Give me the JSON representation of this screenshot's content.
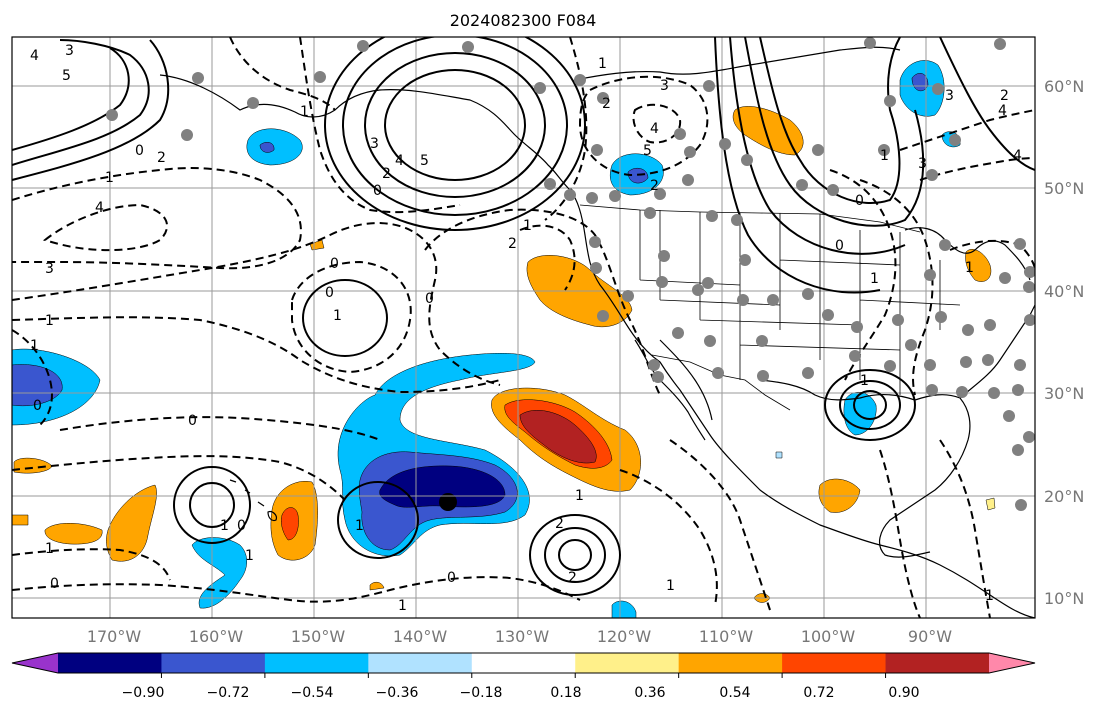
{
  "title": "2024082300 F084",
  "lon_labels": [
    "170°W",
    "160°W",
    "150°W",
    "140°W",
    "130°W",
    "120°W",
    "110°W",
    "100°W",
    "90°W"
  ],
  "lat_labels": [
    "60°N",
    "50°N",
    "40°N",
    "30°N",
    "20°N",
    "10°N"
  ],
  "colorbar": {
    "colors": [
      "#9933cc",
      "#000080",
      "#3a56cf",
      "#00bfff",
      "#b0e2ff",
      "#ffffff",
      "#fff08a",
      "#ffa500",
      "#ff4500",
      "#b22222",
      "#ff88aa"
    ],
    "tick_labels": [
      "−0.90",
      "−0.72",
      "−0.54",
      "−0.36",
      "−0.18",
      "0.18",
      "0.36",
      "0.54",
      "0.72",
      "0.90"
    ]
  },
  "shading_colors": {
    "blue_light": "#00bfff",
    "blue_mid": "#3a56cf",
    "blue_dark": "#000080",
    "orange": "#ffa500",
    "red_orange": "#ff4500",
    "red_dark": "#b22222",
    "pale_blue": "#b0e2ff",
    "yellow": "#fff08a"
  },
  "contour_labels": [
    "4",
    "3",
    "5",
    "0",
    "2",
    "1",
    "4",
    "3",
    "5",
    "4",
    "3",
    "2",
    "0",
    "1",
    "3",
    "4",
    "5",
    "2",
    "1",
    "2",
    "1",
    "2",
    "0",
    "0",
    "1",
    "0",
    "0",
    "1",
    "0",
    "1",
    "0",
    "1",
    "1",
    "0",
    "1",
    "1",
    "1",
    "2",
    "2",
    "0",
    "1",
    "2",
    "4",
    "3",
    "1",
    "0",
    "0",
    "1",
    "1",
    "4",
    "3",
    "1",
    "1",
    "1"
  ],
  "marker_color": "#808080"
}
